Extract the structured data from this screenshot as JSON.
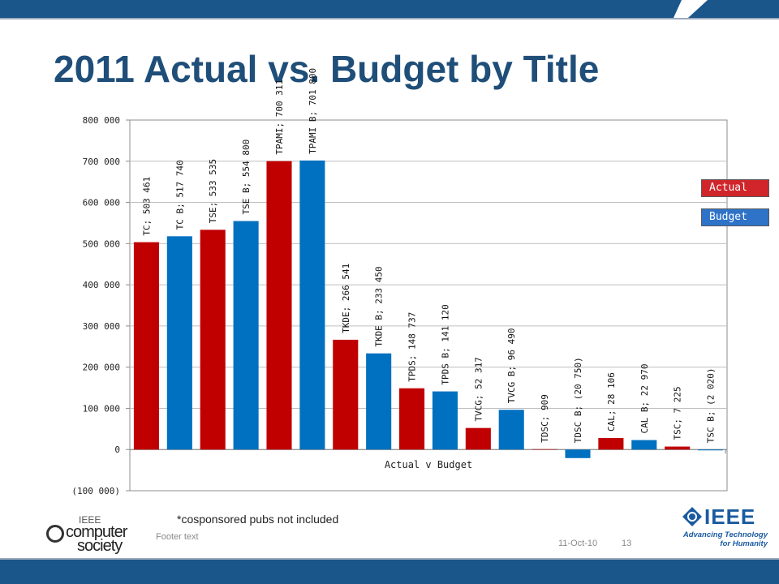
{
  "slide": {
    "title": "2011 Actual vs. Budget by Title",
    "note": "*cosponsored pubs not included",
    "footer_text": "Footer text",
    "date": "11-Oct-10",
    "page_number": "13",
    "brand_color": "#1f4e79",
    "band_color": "#1a568a"
  },
  "logos": {
    "computer_society": {
      "ieee": "IEEE",
      "line1": "computer",
      "line2": "society"
    },
    "ieee": {
      "word": "IEEE",
      "tagline_1": "Advancing Technology",
      "tagline_2": "for Humanity"
    }
  },
  "legend": [
    {
      "label": "Actual",
      "color": "#c00000"
    },
    {
      "label": "Budget",
      "color": "#0070c0"
    }
  ],
  "chart_data": {
    "type": "bar",
    "xlabel": "Actual v Budget",
    "ylim": [
      -100000,
      800000
    ],
    "yticks": [
      -100000,
      0,
      100000,
      200000,
      300000,
      400000,
      500000,
      600000,
      700000,
      800000
    ],
    "ytick_labels": [
      "(100 000)",
      "0",
      "100 000",
      "200 000",
      "300 000",
      "400 000",
      "500 000",
      "600 000",
      "700 000",
      "800 000"
    ],
    "gridlines": true,
    "legend_position": "right",
    "bars": [
      {
        "label": "TC",
        "value": 503461,
        "series": "Actual",
        "data_label": "TC; 503 461"
      },
      {
        "label": "TC B",
        "value": 517740,
        "series": "Budget",
        "data_label": "TC B; 517 740"
      },
      {
        "label": "TSE",
        "value": 533535,
        "series": "Actual",
        "data_label": "TSE; 533 535"
      },
      {
        "label": "TSE B",
        "value": 554800,
        "series": "Budget",
        "data_label": "TSE B; 554 800"
      },
      {
        "label": "TPAMI",
        "value": 700311,
        "series": "Actual",
        "data_label": "TPAMI; 700 311"
      },
      {
        "label": "TPAMI B",
        "value": 701800,
        "series": "Budget",
        "data_label": "TPAMI B; 701 800"
      },
      {
        "label": "TKDE",
        "value": 266541,
        "series": "Actual",
        "data_label": "TKDE; 266 541"
      },
      {
        "label": "TKDE B",
        "value": 233450,
        "series": "Budget",
        "data_label": "TKDE B; 233 450"
      },
      {
        "label": "TPDS",
        "value": 148737,
        "series": "Actual",
        "data_label": "TPDS; 148 737"
      },
      {
        "label": "TPDS B",
        "value": 141120,
        "series": "Budget",
        "data_label": "TPDS B; 141 120"
      },
      {
        "label": "TVCG",
        "value": 52317,
        "series": "Actual",
        "data_label": "TVCG; 52 317"
      },
      {
        "label": "TVCG B",
        "value": 96490,
        "series": "Budget",
        "data_label": "TVCG B; 96 490"
      },
      {
        "label": "TDSC",
        "value": 909,
        "series": "Actual",
        "data_label": "TDSC; 909"
      },
      {
        "label": "TDSC B",
        "value": -20750,
        "series": "Budget",
        "data_label": "TDSC B; (20 750)"
      },
      {
        "label": "CAL",
        "value": 28106,
        "series": "Actual",
        "data_label": "CAL; 28 106"
      },
      {
        "label": "CAL B",
        "value": 22970,
        "series": "Budget",
        "data_label": "CAL B; 22 970"
      },
      {
        "label": "TSC",
        "value": 7225,
        "series": "Actual",
        "data_label": "TSC; 7 225"
      },
      {
        "label": "TSC B",
        "value": -2020,
        "series": "Budget",
        "data_label": "TSC B; (2 020)"
      }
    ]
  }
}
